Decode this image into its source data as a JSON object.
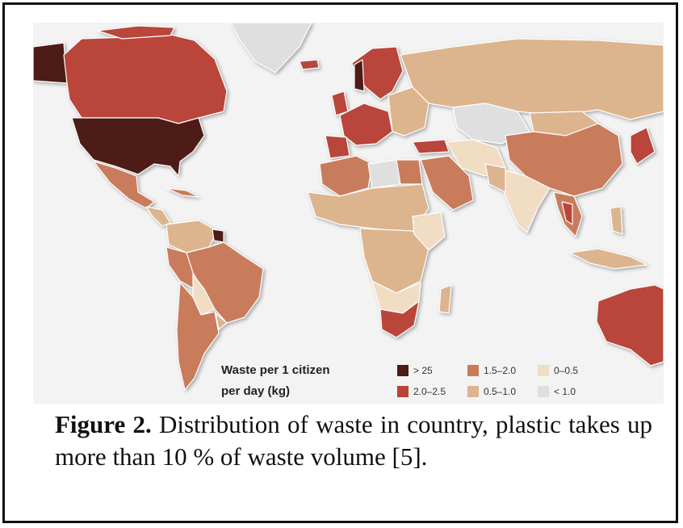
{
  "legend": {
    "title_line1": "Waste per 1 citizen",
    "title_line2": "per day (kg)",
    "items": [
      {
        "label": "> 25",
        "color": "#4e1b12"
      },
      {
        "label": "1.5–2.0",
        "color": "#c97c5b"
      },
      {
        "label": "0–0.5",
        "color": "#f1dcc4"
      },
      {
        "label": "2.0–2.5",
        "color": "#b9453a"
      },
      {
        "label": "0.5–1.0",
        "color": "#dcb48e"
      },
      {
        "label": "< 1.0",
        "color": "#dfdfdf"
      }
    ]
  },
  "caption": {
    "label": "Figure 2.",
    "text": "Distribution of waste in country, plastic takes up more than 10 % of waste volume [5]."
  }
}
